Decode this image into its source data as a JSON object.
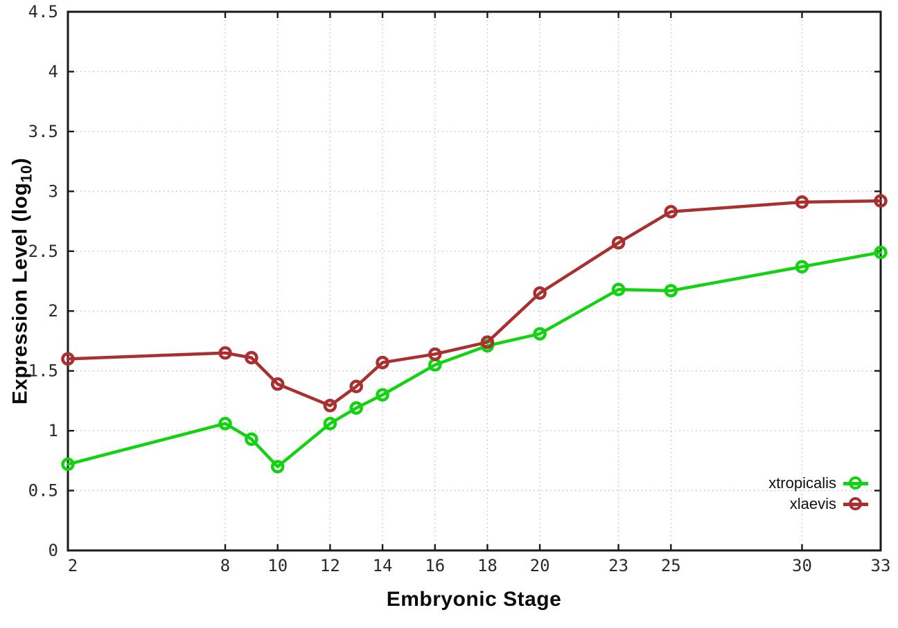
{
  "chart_data": {
    "type": "line",
    "xlabel": "Embryonic Stage",
    "ylabel_main": "Expression Level (log",
    "ylabel_sub": "10",
    "ylabel_close": ")",
    "x": [
      2,
      8,
      9,
      10,
      12,
      13,
      14,
      16,
      18,
      20,
      23,
      25,
      30,
      33
    ],
    "series": [
      {
        "name": "xtropicalis",
        "color": "#12d212",
        "values": [
          0.72,
          1.06,
          0.93,
          0.7,
          1.06,
          1.19,
          1.3,
          1.55,
          1.71,
          1.81,
          2.18,
          2.17,
          2.37,
          2.49
        ]
      },
      {
        "name": "xlaevis",
        "color": "#a93030",
        "values": [
          1.6,
          1.65,
          1.61,
          1.39,
          1.21,
          1.37,
          1.57,
          1.64,
          1.74,
          2.15,
          2.57,
          2.83,
          2.91,
          2.92
        ]
      }
    ],
    "x_ticks": [
      2,
      8,
      10,
      12,
      14,
      16,
      18,
      20,
      23,
      25,
      30,
      33
    ],
    "y_ticks": [
      0,
      0.5,
      1,
      1.5,
      2,
      2.5,
      3,
      3.5,
      4,
      4.5
    ],
    "xlim": [
      2,
      33
    ],
    "ylim": [
      0,
      4.5
    ],
    "grid": true,
    "legend_position": "bottom-right",
    "styles": {
      "border_color": "#1a1a1a",
      "grid_color": "#bcbcbc",
      "tick_label_color": "#2b2b2b"
    }
  }
}
